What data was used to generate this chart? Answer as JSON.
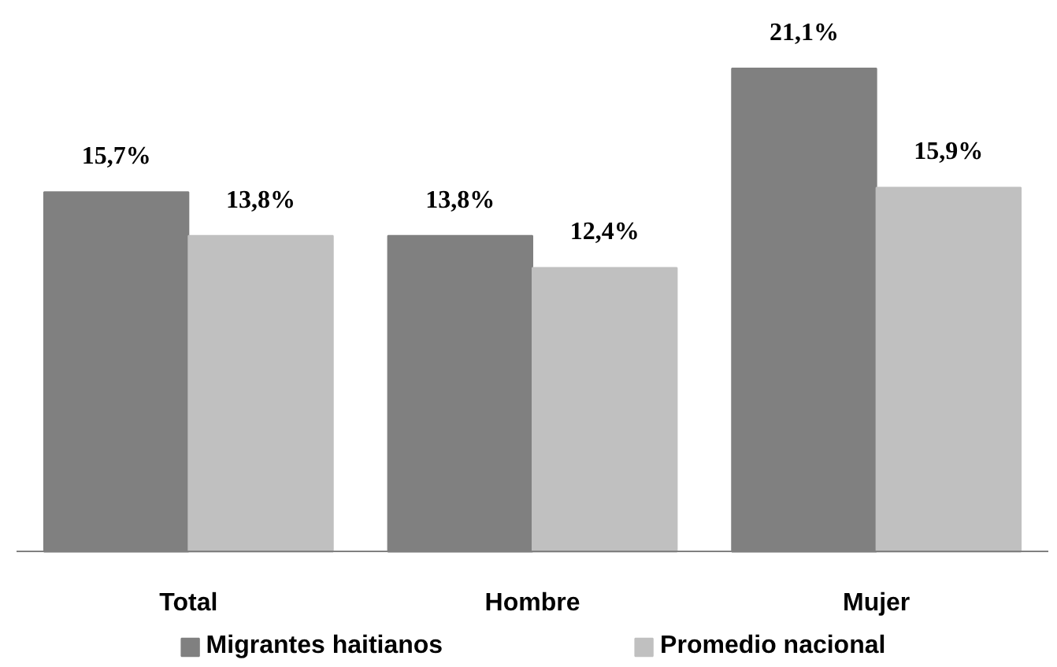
{
  "chart_data": {
    "type": "bar",
    "categories": [
      "Total",
      "Hombre",
      "Mujer"
    ],
    "series": [
      {
        "name": "Migrantes haitianos",
        "color": "#808080",
        "values": [
          15.7,
          13.8,
          21.1
        ],
        "value_labels": [
          "15,7%",
          "13,8%",
          "21,1%"
        ]
      },
      {
        "name": "Promedio nacional",
        "color": "#c0c0c0",
        "values": [
          13.8,
          12.4,
          15.9
        ],
        "value_labels": [
          "13,8%",
          "12,4%",
          "15,9%"
        ]
      }
    ],
    "tick_labels": "x",
    "legend": "bottom"
  }
}
